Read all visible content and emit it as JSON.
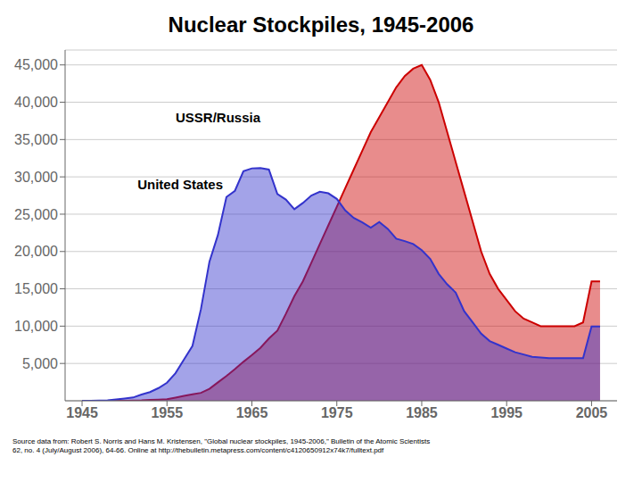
{
  "chart_data": {
    "type": "area",
    "title": "Nuclear Stockpiles, 1945-2006",
    "subtitle": "Source data from: Robert S. Norris and Hans M. Kristensen, \"Global nuclear stockpiles, 1945-2006,\" Bulletin of the Atomic Scientists\n62, no. 4 (July/August 2006), 64-66. Online at http://thebulletin.metapress.com/content/c4120650912x74k7/fulltext.pdf",
    "x": [
      1945,
      1946,
      1947,
      1948,
      1949,
      1950,
      1951,
      1952,
      1953,
      1954,
      1955,
      1956,
      1957,
      1958,
      1959,
      1960,
      1961,
      1962,
      1963,
      1964,
      1965,
      1966,
      1967,
      1968,
      1969,
      1970,
      1971,
      1972,
      1973,
      1974,
      1975,
      1976,
      1977,
      1978,
      1979,
      1980,
      1981,
      1982,
      1983,
      1984,
      1985,
      1986,
      1987,
      1988,
      1989,
      1990,
      1991,
      1992,
      1993,
      1994,
      1995,
      1996,
      1997,
      1998,
      1999,
      2000,
      2001,
      2002,
      2003,
      2004,
      2005,
      2006
    ],
    "series": [
      {
        "name": "USSR/Russia",
        "color": "#CC0000",
        "values": [
          0,
          0,
          0,
          0,
          1,
          5,
          25,
          50,
          120,
          150,
          200,
          426,
          660,
          869,
          1060,
          1605,
          2471,
          3322,
          4238,
          5221,
          6129,
          7089,
          8339,
          9399,
          11643,
          14018,
          16000,
          18500,
          21000,
          23500,
          26000,
          28500,
          31000,
          33500,
          36000,
          38000,
          40000,
          42000,
          43500,
          44500,
          45000,
          43000,
          40000,
          36000,
          32000,
          28000,
          24000,
          20000,
          17000,
          15000,
          13500,
          12000,
          11000,
          10500,
          10000,
          10000,
          10000,
          10000,
          10000,
          10500,
          16000,
          16000
        ]
      },
      {
        "name": "United States",
        "color": "#3333CC",
        "values": [
          6,
          11,
          32,
          50,
          170,
          299,
          438,
          832,
          1169,
          1703,
          2422,
          3692,
          5543,
          7345,
          12298,
          18638,
          22229,
          27297,
          28133,
          30751,
          31139,
          31175,
          30974,
          27694,
          26958,
          25661,
          26500,
          27500,
          28000,
          27800,
          27052,
          25500,
          24500,
          23900,
          23200,
          23945,
          23031,
          21725,
          21392,
          21000,
          20174,
          19000,
          17000,
          15600,
          14500,
          12000,
          10500,
          9000,
          8000,
          7500,
          7000,
          6500,
          6200,
          5900,
          5800,
          5700,
          5700,
          5700,
          5700,
          5700,
          9960,
          9960
        ]
      }
    ],
    "annotations": [
      {
        "text": "USSR/Russia",
        "x": 1955.5,
        "y": 38000
      },
      {
        "text": "United States",
        "x": 1951,
        "y": 29000
      }
    ],
    "xlim": [
      1943,
      2008
    ],
    "xticks": [
      1945,
      1955,
      1965,
      1975,
      1985,
      1995,
      2005
    ],
    "ylim": [
      0,
      47000
    ],
    "yticks": [
      {
        "value": 5000,
        "label": "5,000"
      },
      {
        "value": 10000,
        "label": "10,000"
      },
      {
        "value": 15000,
        "label": "15,000"
      },
      {
        "value": 20000,
        "label": "20,000"
      },
      {
        "value": 25000,
        "label": "25,000"
      },
      {
        "value": 30000,
        "label": "30,000"
      },
      {
        "value": 35000,
        "label": "35,000"
      },
      {
        "value": 40000,
        "label": "40,000"
      },
      {
        "value": 45000,
        "label": "45,000"
      }
    ],
    "grid": "y"
  }
}
